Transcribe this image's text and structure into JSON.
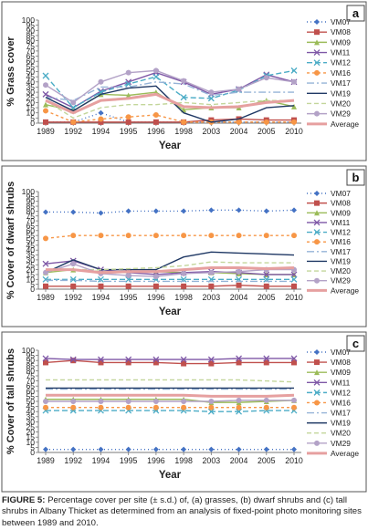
{
  "chart_data": [
    {
      "type": "line",
      "panel_label": "a",
      "ylabel": "% Grass cover",
      "xlabel": "Year",
      "categories": [
        "1989",
        "1992",
        "1994",
        "1995",
        "1996",
        "1998",
        "2003",
        "2004",
        "2005",
        "2010"
      ],
      "ylim": [
        0,
        100
      ],
      "yticks": [
        0,
        5,
        10,
        15,
        20,
        25,
        30,
        35,
        40,
        45,
        50,
        55,
        60,
        65,
        70,
        75,
        80,
        85,
        90,
        95,
        100
      ],
      "series": [
        {
          "name": "VM07",
          "color": "#4472c4",
          "dash": "1,3",
          "marker": "diamond",
          "values": [
            1,
            1,
            10,
            1,
            1,
            1,
            1,
            1,
            1,
            1
          ]
        },
        {
          "name": "VM08",
          "color": "#c0504d",
          "dash": "",
          "marker": "square",
          "values": [
            1,
            1,
            1,
            1,
            1,
            1,
            3,
            4,
            3,
            3
          ]
        },
        {
          "name": "VM09",
          "color": "#9bbb59",
          "dash": "",
          "marker": "triangle",
          "values": [
            18,
            12,
            28,
            27,
            30,
            13,
            15,
            15,
            22,
            16
          ]
        },
        {
          "name": "VM11",
          "color": "#7e57a6",
          "dash": "",
          "marker": "x",
          "values": [
            28,
            15,
            31,
            40,
            49,
            40,
            28,
            33,
            47,
            40
          ]
        },
        {
          "name": "VM12",
          "color": "#4bacc6",
          "dash": "6,3",
          "marker": "x",
          "values": [
            46,
            15,
            30,
            38,
            45,
            25,
            24,
            32,
            46,
            51
          ]
        },
        {
          "name": "VM16",
          "color": "#f79646",
          "dash": "3,3",
          "marker": "circle",
          "values": [
            12,
            1,
            4,
            6,
            8,
            1,
            1,
            1,
            1,
            1
          ]
        },
        {
          "name": "VM17",
          "color": "#95b3d7",
          "dash": "8,3,2,3",
          "marker": "none",
          "values": [
            25,
            22,
            35,
            35,
            40,
            38,
            27,
            30,
            30,
            30
          ]
        },
        {
          "name": "VM19",
          "color": "#1f3864",
          "dash": "",
          "marker": "none",
          "values": [
            25,
            12,
            28,
            34,
            36,
            10,
            1,
            4,
            15,
            17
          ]
        },
        {
          "name": "VM20",
          "color": "#c3d69b",
          "dash": "5,3",
          "marker": "none",
          "values": [
            22,
            5,
            15,
            18,
            18,
            20,
            18,
            20,
            22,
            22
          ]
        },
        {
          "name": "VM29",
          "color": "#b3a2c7",
          "dash": "",
          "marker": "circle",
          "values": [
            37,
            20,
            40,
            49,
            51,
            41,
            30,
            33,
            44,
            40
          ]
        },
        {
          "name": "Average",
          "color": "#e6a0a0",
          "dash": "",
          "marker": "none",
          "width": 3,
          "values": [
            22,
            10,
            22,
            24,
            28,
            16,
            15,
            16,
            20,
            22
          ]
        }
      ]
    },
    {
      "type": "line",
      "panel_label": "b",
      "ylabel": "% Cover of dwarf shrubs",
      "xlabel": "Year",
      "categories": [
        "1989",
        "1992",
        "1994",
        "1995",
        "1996",
        "1998",
        "2003",
        "2004",
        "2005",
        "2010"
      ],
      "ylim": [
        0,
        100
      ],
      "yticks": [
        0,
        5,
        10,
        15,
        20,
        25,
        30,
        35,
        40,
        45,
        50,
        55,
        60,
        65,
        70,
        75,
        80,
        85,
        90,
        95,
        100
      ],
      "series": [
        {
          "name": "VM07",
          "color": "#4472c4",
          "dash": "1,3",
          "marker": "diamond",
          "values": [
            79,
            79,
            78,
            80,
            80,
            80,
            81,
            81,
            80,
            81
          ]
        },
        {
          "name": "VM08",
          "color": "#c0504d",
          "dash": "",
          "marker": "square",
          "values": [
            3,
            3,
            3,
            3,
            3,
            3,
            3,
            4,
            3,
            3
          ]
        },
        {
          "name": "VM09",
          "color": "#9bbb59",
          "dash": "",
          "marker": "triangle",
          "values": [
            17,
            20,
            18,
            17,
            18,
            17,
            17,
            16,
            15,
            15
          ]
        },
        {
          "name": "VM11",
          "color": "#7e57a6",
          "dash": "",
          "marker": "x",
          "values": [
            26,
            29,
            20,
            17,
            15,
            17,
            18,
            17,
            15,
            15
          ]
        },
        {
          "name": "VM12",
          "color": "#4bacc6",
          "dash": "6,3",
          "marker": "x",
          "values": [
            10,
            10,
            10,
            10,
            10,
            10,
            10,
            10,
            10,
            10
          ]
        },
        {
          "name": "VM16",
          "color": "#f79646",
          "dash": "3,3",
          "marker": "circle",
          "values": [
            52,
            55,
            55,
            55,
            55,
            55,
            55,
            55,
            55,
            55
          ]
        },
        {
          "name": "VM17",
          "color": "#95b3d7",
          "dash": "8,3,2,3",
          "marker": "none",
          "values": [
            9,
            9,
            8,
            8,
            8,
            8,
            8,
            8,
            8,
            8
          ]
        },
        {
          "name": "VM19",
          "color": "#1f3864",
          "dash": "",
          "marker": "none",
          "values": [
            17,
            30,
            20,
            20,
            20,
            33,
            38,
            37,
            36,
            35
          ]
        },
        {
          "name": "VM20",
          "color": "#c3d69b",
          "dash": "5,3",
          "marker": "none",
          "values": [
            20,
            20,
            20,
            21,
            22,
            24,
            28,
            27,
            27,
            27
          ]
        },
        {
          "name": "VM29",
          "color": "#b3a2c7",
          "dash": "",
          "marker": "circle",
          "values": [
            17,
            26,
            16,
            14,
            13,
            16,
            17,
            18,
            20,
            20
          ]
        },
        {
          "name": "Average",
          "color": "#e6a0a0",
          "dash": "",
          "marker": "none",
          "width": 3,
          "values": [
            20,
            20,
            17,
            18,
            18,
            20,
            22,
            22,
            21,
            22
          ]
        }
      ]
    },
    {
      "type": "line",
      "panel_label": "c",
      "ylabel": "% Cover of tall shrubs",
      "xlabel": "Year",
      "categories": [
        "1989",
        "1992",
        "1994",
        "1995",
        "1996",
        "1998",
        "2003",
        "2004",
        "2005",
        "2010"
      ],
      "ylim": [
        0,
        100
      ],
      "yticks": [
        0,
        5,
        10,
        15,
        20,
        25,
        30,
        35,
        40,
        45,
        50,
        55,
        60,
        65,
        70,
        75,
        80,
        85,
        90,
        95,
        100
      ],
      "series": [
        {
          "name": "VM07",
          "color": "#4472c4",
          "dash": "1,3",
          "marker": "diamond",
          "values": [
            3,
            3,
            3,
            3,
            3,
            3,
            3,
            3,
            3,
            3
          ]
        },
        {
          "name": "VM08",
          "color": "#c0504d",
          "dash": "",
          "marker": "square",
          "values": [
            88,
            90,
            88,
            88,
            88,
            87,
            87,
            88,
            88,
            88
          ]
        },
        {
          "name": "VM09",
          "color": "#9bbb59",
          "dash": "",
          "marker": "triangle",
          "values": [
            52,
            52,
            52,
            52,
            52,
            52,
            49,
            49,
            50,
            51
          ]
        },
        {
          "name": "VM11",
          "color": "#7e57a6",
          "dash": "",
          "marker": "x",
          "values": [
            92,
            91,
            91,
            91,
            91,
            91,
            91,
            92,
            92,
            92
          ]
        },
        {
          "name": "VM12",
          "color": "#4bacc6",
          "dash": "6,3",
          "marker": "x",
          "values": [
            41,
            41,
            41,
            41,
            41,
            41,
            40,
            40,
            41,
            41
          ]
        },
        {
          "name": "VM16",
          "color": "#f79646",
          "dash": "3,3",
          "marker": "circle",
          "values": [
            44,
            44,
            44,
            44,
            44,
            44,
            44,
            44,
            44,
            44
          ]
        },
        {
          "name": "VM17",
          "color": "#95b3d7",
          "dash": "8,3,2,3",
          "marker": "none",
          "values": [
            62,
            62,
            62,
            62,
            62,
            62,
            62,
            62,
            62,
            62
          ]
        },
        {
          "name": "VM19",
          "color": "#1f3864",
          "dash": "",
          "marker": "none",
          "values": [
            63,
            63,
            63,
            63,
            63,
            63,
            63,
            63,
            63,
            63
          ]
        },
        {
          "name": "VM20",
          "color": "#c3d69b",
          "dash": "5,3",
          "marker": "none",
          "values": [
            71,
            71,
            71,
            71,
            71,
            71,
            71,
            71,
            70,
            69
          ]
        },
        {
          "name": "VM29",
          "color": "#b3a2c7",
          "dash": "",
          "marker": "circle",
          "values": [
            50,
            50,
            50,
            50,
            50,
            50,
            50,
            51,
            51,
            51
          ]
        },
        {
          "name": "Average",
          "color": "#e6a0a0",
          "dash": "",
          "marker": "none",
          "width": 3,
          "values": [
            56,
            56,
            56,
            56,
            56,
            56,
            55,
            55,
            55,
            56
          ]
        }
      ]
    }
  ],
  "caption": {
    "label": "FIGURE 5:",
    "text": " Percentage cover per site (± s.d.) of, (a) grasses, (b) dwarf shrubs and (c) tall shrubs in Albany Thicket as determined from an analysis of fixed-point photo monitoring sites between 1989 and 2010."
  }
}
